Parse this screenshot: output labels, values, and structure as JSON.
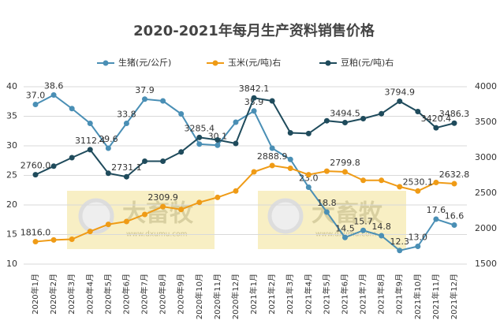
{
  "chart_data": {
    "type": "line",
    "title": "2020-2021年每月生产资料销售价格",
    "watermark": "大畜牧",
    "watermark_url": "www.dxumu.com",
    "categories": [
      "2020年1月",
      "2020年2月",
      "2020年3月",
      "2020年4月",
      "2020年5月",
      "2020年6月",
      "2020年7月",
      "2020年8月",
      "2020年9月",
      "2020年10月",
      "2020年11月",
      "2020年12月",
      "2021年1月",
      "2021年2月",
      "2021年3月",
      "2021年4月",
      "2021年5月",
      "2021年6月",
      "2021年7月",
      "2021年8月",
      "2021年9月",
      "2021年10月",
      "2021年11月",
      "2021年12月"
    ],
    "ylim": [
      10,
      40
    ],
    "yticks": [
      10,
      15,
      20,
      25,
      30,
      35,
      40
    ],
    "y2lim": [
      1500,
      4000
    ],
    "y2ticks": [
      1500,
      2000,
      2500,
      3000,
      3500,
      4000
    ],
    "grid": true,
    "legend": "top",
    "series": [
      {
        "name": "生猪(元/公斤)",
        "color": "#4a8fb5",
        "axis": "y",
        "values": [
          37.0,
          38.6,
          36.3,
          33.8,
          29.6,
          33.8,
          37.9,
          37.6,
          35.4,
          30.3,
          30.1,
          34.0,
          35.9,
          29.6,
          27.7,
          23.0,
          18.8,
          14.5,
          15.7,
          14.8,
          12.3,
          13.0,
          17.6,
          16.6
        ],
        "value_labels": [
          "37.0",
          "38.6",
          null,
          null,
          "29.6",
          "33.8",
          "37.9",
          null,
          null,
          null,
          "30.1",
          null,
          "35.9",
          null,
          null,
          "23.0",
          "18.8",
          "14.5",
          "15.7",
          "14.8",
          "12.3",
          "13.0",
          "17.6",
          "16.6"
        ]
      },
      {
        "name": "玉米(元/吨)右",
        "color": "#ef9b16",
        "axis": "y2",
        "values": [
          1816.0,
          1840,
          1850,
          1960,
          2060,
          2100,
          2200,
          2309.9,
          2270,
          2370,
          2440,
          2530,
          2800,
          2888.9,
          2850,
          2760,
          2810,
          2799.8,
          2680,
          2680,
          2590,
          2530.1,
          2650,
          2632.8
        ],
        "value_labels": [
          "1816.0",
          null,
          null,
          null,
          null,
          null,
          null,
          "2309.9",
          null,
          null,
          null,
          null,
          null,
          "2888.9",
          null,
          null,
          null,
          "2799.8",
          null,
          null,
          null,
          "2530.1",
          null,
          "2632.8"
        ]
      },
      {
        "name": "豆粕(元/吨)右",
        "color": "#1f4b5c",
        "axis": "y2",
        "values": [
          2760.0,
          2880,
          3000,
          3112.4,
          2780,
          2731.1,
          2950,
          2950,
          3080,
          3285.4,
          3250,
          3200,
          3842.1,
          3800,
          3350,
          3340,
          3520,
          3494.5,
          3550,
          3620,
          3794.9,
          3650,
          3420.4,
          3486.3
        ],
        "value_labels": [
          "2760.0",
          null,
          null,
          "3112.4",
          null,
          "2731.1",
          null,
          null,
          null,
          "3285.4",
          null,
          null,
          "3842.1",
          null,
          null,
          null,
          null,
          "3494.5",
          null,
          null,
          "3794.9",
          null,
          "3420.4",
          "3486.3"
        ]
      }
    ]
  }
}
